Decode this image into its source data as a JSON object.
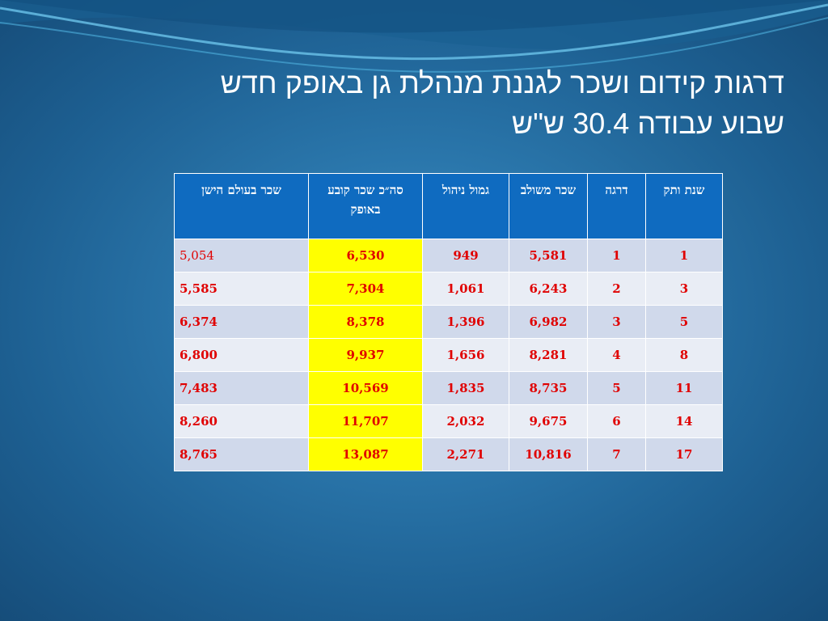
{
  "slide": {
    "title_line1": "דרגות קידום ושכר לגננת מנהלת גן באופק חדש",
    "title_line2": "שבוע עבודה 30.4 ש\"ש"
  },
  "table": {
    "headers": {
      "seniority": "שנת ותק",
      "grade": "דרגה",
      "combined_salary": "שכר משולב",
      "management_bonus": "גמול ניהול",
      "total_fixed": "סה״כ שכר קובע באופק",
      "old_salary": "שכר בעולם הישן"
    },
    "rows": [
      {
        "seniority": "1",
        "grade": "1",
        "combined_salary": "5,581",
        "management_bonus": "949",
        "total_fixed": "6,530",
        "old_salary": "5,054"
      },
      {
        "seniority": "3",
        "grade": "2",
        "combined_salary": "6,243",
        "management_bonus": "1,061",
        "total_fixed": "7,304",
        "old_salary": "5,585"
      },
      {
        "seniority": "5",
        "grade": "3",
        "combined_salary": "6,982",
        "management_bonus": "1,396",
        "total_fixed": "8,378",
        "old_salary": "6,374"
      },
      {
        "seniority": "8",
        "grade": "4",
        "combined_salary": "8,281",
        "management_bonus": "1,656",
        "total_fixed": "9,937",
        "old_salary": "6,800"
      },
      {
        "seniority": "11",
        "grade": "5",
        "combined_salary": "8,735",
        "management_bonus": "1,835",
        "total_fixed": "10,569",
        "old_salary": "7,483"
      },
      {
        "seniority": "14",
        "grade": "6",
        "combined_salary": "9,675",
        "management_bonus": "2,032",
        "total_fixed": "11,707",
        "old_salary": "8,260"
      },
      {
        "seniority": "17",
        "grade": "7",
        "combined_salary": "10,816",
        "management_bonus": "2,271",
        "total_fixed": "13,087",
        "old_salary": "8,765"
      }
    ]
  },
  "colors": {
    "header_bg": "#0f6bc0",
    "value_text": "#e00000",
    "highlight": "#ffff00",
    "row_odd": "#d0d9eb",
    "row_even": "#e9edf5"
  }
}
